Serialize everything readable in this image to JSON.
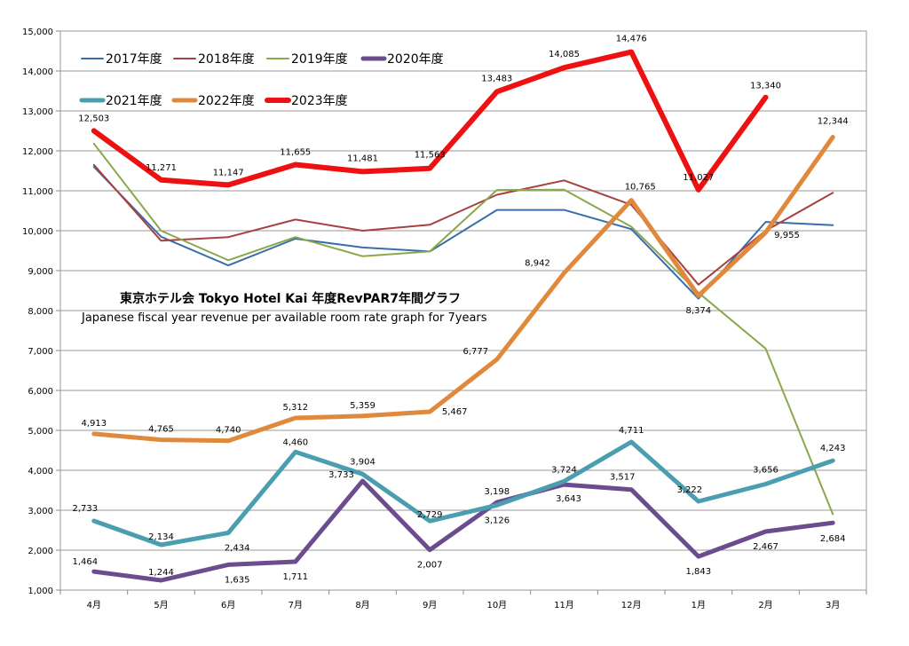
{
  "chart_data": {
    "type": "line",
    "title": "東京ホテル会 Tokyo Hotel Kai  年度RevPAR7年間グラフ",
    "subtitle": "Japanese fiscal year revenue per available room rate graph for 7years",
    "xlabel": "",
    "ylabel": "",
    "ylim": [
      1000,
      15000
    ],
    "yticks": [
      1000,
      2000,
      3000,
      4000,
      5000,
      6000,
      7000,
      8000,
      9000,
      10000,
      11000,
      12000,
      13000,
      14000,
      15000
    ],
    "categories": [
      "4月",
      "5月",
      "6月",
      "7月",
      "8月",
      "9月",
      "10月",
      "11月",
      "12月",
      "1月",
      "2月",
      "3月"
    ],
    "grid": true,
    "legend": "top-left",
    "series": [
      {
        "name": "2017年度",
        "color": "#3a6ea8",
        "weight": "thin",
        "values": [
          11600,
          9850,
          9130,
          9800,
          9580,
          9480,
          10520,
          10520,
          10040,
          8300,
          10220,
          10140
        ],
        "labels": [
          null,
          null,
          null,
          null,
          null,
          null,
          null,
          null,
          null,
          null,
          null,
          null
        ]
      },
      {
        "name": "2018年度",
        "color": "#a8403e",
        "weight": "thin",
        "values": [
          11650,
          9750,
          9840,
          10280,
          10000,
          10150,
          10900,
          11260,
          10650,
          8650,
          10000,
          10950
        ],
        "labels": [
          null,
          null,
          null,
          null,
          null,
          null,
          null,
          null,
          null,
          null,
          null,
          null
        ]
      },
      {
        "name": "2019年度",
        "color": "#8aa84a",
        "weight": "thin",
        "values": [
          12180,
          10000,
          9260,
          9840,
          9360,
          9480,
          11020,
          11030,
          10100,
          8450,
          7050,
          2900
        ],
        "labels": [
          null,
          null,
          null,
          null,
          null,
          null,
          null,
          null,
          null,
          null,
          null,
          null
        ]
      },
      {
        "name": "2020年度",
        "color": "#6b4c8e",
        "weight": "thick",
        "values": [
          1464,
          1244,
          1635,
          1711,
          3733,
          2007,
          3198,
          3643,
          3517,
          1843,
          2467,
          2684
        ],
        "labels": [
          "1,464",
          "1,244",
          "1,635",
          "1,711",
          "3,733",
          "2,007",
          "3,198",
          "3,643",
          "3,517",
          "1,843",
          "2,467",
          "2,684"
        ]
      },
      {
        "name": "2021年度",
        "color": "#4a9eb0",
        "weight": "thick",
        "values": [
          2733,
          2134,
          2434,
          4460,
          3904,
          2729,
          3126,
          3724,
          4711,
          3222,
          3656,
          4243
        ],
        "labels": [
          "2,733",
          "2,134",
          "2,434",
          "4,460",
          "3,904",
          "2,729",
          "3,126",
          "3,724",
          "4,711",
          "3,222",
          "3,656",
          "4,243"
        ]
      },
      {
        "name": "2022年度",
        "color": "#e0893c",
        "weight": "thick",
        "values": [
          4913,
          4765,
          4740,
          5312,
          5359,
          5467,
          6777,
          8942,
          10765,
          8374,
          9955,
          12344
        ],
        "labels": [
          "4,913",
          "4,765",
          "4,740",
          "5,312",
          "5,359",
          "5,467",
          "6,777",
          "8,942",
          "10,765",
          "8,374",
          "9,955",
          "12,344"
        ]
      },
      {
        "name": "2023年度",
        "color": "#ee1111",
        "weight": "thicker",
        "values": [
          12503,
          11271,
          11147,
          11655,
          11481,
          11563,
          13483,
          14085,
          14476,
          11027,
          13340,
          null
        ],
        "labels": [
          "12,503",
          "11,271",
          "11,147",
          "11,655",
          "11,481",
          "11,563",
          "13,483",
          "14,085",
          "14,476",
          "11,027",
          "13,340",
          null
        ]
      }
    ]
  }
}
